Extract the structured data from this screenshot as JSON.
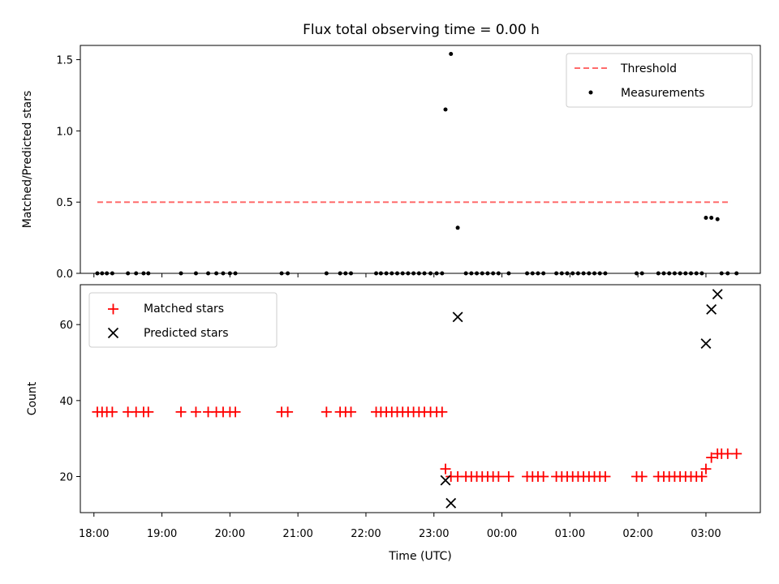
{
  "chart_data": [
    {
      "type": "scatter",
      "title": "Flux total observing time = 0.00 h",
      "xlabel": "",
      "ylabel": "Matched/Predicted stars",
      "x_unit": "hours since 18:00 UTC",
      "xlim": [
        -0.2,
        9.8
      ],
      "ylim": [
        0,
        1.6
      ],
      "yticks": [
        0.0,
        0.5,
        1.0,
        1.5
      ],
      "ytick_labels": [
        "0.0",
        "0.5",
        "1.0",
        "1.5"
      ],
      "legend_position": "top-right",
      "threshold": {
        "name": "Threshold",
        "value": 0.5,
        "x_range": [
          0.05,
          9.37
        ],
        "color": "#ff6b6b",
        "style": "dashed"
      },
      "series": [
        {
          "name": "Measurements",
          "color": "#000000",
          "marker": "dot",
          "points": [
            [
              0.05,
              0
            ],
            [
              0.12,
              0
            ],
            [
              0.19,
              0
            ],
            [
              0.27,
              0
            ],
            [
              0.5,
              0
            ],
            [
              0.62,
              0
            ],
            [
              0.73,
              0
            ],
            [
              0.8,
              0
            ],
            [
              1.28,
              0
            ],
            [
              1.5,
              0
            ],
            [
              1.68,
              0
            ],
            [
              1.8,
              0
            ],
            [
              1.9,
              0
            ],
            [
              2.0,
              0
            ],
            [
              2.08,
              0
            ],
            [
              2.76,
              0
            ],
            [
              2.85,
              0
            ],
            [
              3.42,
              0
            ],
            [
              3.62,
              0
            ],
            [
              3.7,
              0
            ],
            [
              3.78,
              0
            ],
            [
              4.15,
              0
            ],
            [
              4.22,
              0
            ],
            [
              4.3,
              0
            ],
            [
              4.38,
              0
            ],
            [
              4.46,
              0
            ],
            [
              4.54,
              0
            ],
            [
              4.62,
              0
            ],
            [
              4.7,
              0
            ],
            [
              4.78,
              0
            ],
            [
              4.86,
              0
            ],
            [
              4.95,
              0
            ],
            [
              5.04,
              0
            ],
            [
              5.12,
              0
            ],
            [
              5.17,
              1.15
            ],
            [
              5.25,
              1.54
            ],
            [
              5.35,
              0.32
            ],
            [
              5.47,
              0
            ],
            [
              5.55,
              0
            ],
            [
              5.63,
              0
            ],
            [
              5.71,
              0
            ],
            [
              5.79,
              0
            ],
            [
              5.87,
              0
            ],
            [
              5.95,
              0
            ],
            [
              6.1,
              0
            ],
            [
              6.37,
              0
            ],
            [
              6.45,
              0
            ],
            [
              6.53,
              0
            ],
            [
              6.61,
              0
            ],
            [
              6.8,
              0
            ],
            [
              6.88,
              0
            ],
            [
              6.96,
              0
            ],
            [
              7.04,
              0
            ],
            [
              7.12,
              0
            ],
            [
              7.2,
              0
            ],
            [
              7.28,
              0
            ],
            [
              7.36,
              0
            ],
            [
              7.44,
              0
            ],
            [
              7.52,
              0
            ],
            [
              7.98,
              0
            ],
            [
              8.06,
              0
            ],
            [
              8.3,
              0
            ],
            [
              8.38,
              0
            ],
            [
              8.46,
              0
            ],
            [
              8.54,
              0
            ],
            [
              8.62,
              0
            ],
            [
              8.7,
              0
            ],
            [
              8.78,
              0
            ],
            [
              8.86,
              0
            ],
            [
              8.94,
              0
            ],
            [
              9.0,
              0.39
            ],
            [
              9.08,
              0.39
            ],
            [
              9.17,
              0.38
            ],
            [
              9.23,
              0
            ],
            [
              9.32,
              0
            ],
            [
              9.45,
              0
            ]
          ]
        }
      ]
    },
    {
      "type": "scatter",
      "title": "",
      "xlabel": "Time (UTC)",
      "ylabel": "Count",
      "x_unit": "hours since 18:00 UTC",
      "xlim": [
        -0.2,
        9.8
      ],
      "ylim": [
        10.5,
        70.5
      ],
      "yticks": [
        20,
        40,
        60
      ],
      "ytick_labels": [
        "20",
        "40",
        "60"
      ],
      "xticks": [
        0,
        1,
        2,
        3,
        4,
        5,
        6,
        7,
        8,
        9
      ],
      "xtick_labels": [
        "18:00",
        "19:00",
        "20:00",
        "21:00",
        "22:00",
        "23:00",
        "00:00",
        "01:00",
        "02:00",
        "03:00"
      ],
      "legend_position": "top-left",
      "series": [
        {
          "name": "Matched stars",
          "color": "#ff0000",
          "marker": "plus",
          "points": [
            [
              0.05,
              37
            ],
            [
              0.12,
              37
            ],
            [
              0.19,
              37
            ],
            [
              0.27,
              37
            ],
            [
              0.5,
              37
            ],
            [
              0.62,
              37
            ],
            [
              0.73,
              37
            ],
            [
              0.8,
              37
            ],
            [
              1.28,
              37
            ],
            [
              1.5,
              37
            ],
            [
              1.68,
              37
            ],
            [
              1.8,
              37
            ],
            [
              1.9,
              37
            ],
            [
              2.0,
              37
            ],
            [
              2.08,
              37
            ],
            [
              2.76,
              37
            ],
            [
              2.85,
              37
            ],
            [
              3.42,
              37
            ],
            [
              3.62,
              37
            ],
            [
              3.7,
              37
            ],
            [
              3.78,
              37
            ],
            [
              4.15,
              37
            ],
            [
              4.22,
              37
            ],
            [
              4.3,
              37
            ],
            [
              4.38,
              37
            ],
            [
              4.46,
              37
            ],
            [
              4.54,
              37
            ],
            [
              4.62,
              37
            ],
            [
              4.7,
              37
            ],
            [
              4.78,
              37
            ],
            [
              4.86,
              37
            ],
            [
              4.95,
              37
            ],
            [
              5.04,
              37
            ],
            [
              5.12,
              37
            ],
            [
              5.17,
              22
            ],
            [
              5.25,
              20
            ],
            [
              5.35,
              20
            ],
            [
              5.47,
              20
            ],
            [
              5.55,
              20
            ],
            [
              5.63,
              20
            ],
            [
              5.71,
              20
            ],
            [
              5.79,
              20
            ],
            [
              5.87,
              20
            ],
            [
              5.95,
              20
            ],
            [
              6.1,
              20
            ],
            [
              6.37,
              20
            ],
            [
              6.45,
              20
            ],
            [
              6.53,
              20
            ],
            [
              6.61,
              20
            ],
            [
              6.8,
              20
            ],
            [
              6.88,
              20
            ],
            [
              6.96,
              20
            ],
            [
              7.04,
              20
            ],
            [
              7.12,
              20
            ],
            [
              7.2,
              20
            ],
            [
              7.28,
              20
            ],
            [
              7.36,
              20
            ],
            [
              7.44,
              20
            ],
            [
              7.52,
              20
            ],
            [
              7.98,
              20
            ],
            [
              8.06,
              20
            ],
            [
              8.3,
              20
            ],
            [
              8.38,
              20
            ],
            [
              8.46,
              20
            ],
            [
              8.54,
              20
            ],
            [
              8.62,
              20
            ],
            [
              8.7,
              20
            ],
            [
              8.78,
              20
            ],
            [
              8.86,
              20
            ],
            [
              8.94,
              20
            ],
            [
              9.0,
              22
            ],
            [
              9.08,
              25
            ],
            [
              9.17,
              26
            ],
            [
              9.23,
              26
            ],
            [
              9.32,
              26
            ],
            [
              9.45,
              26
            ]
          ]
        },
        {
          "name": "Predicted stars",
          "color": "#000000",
          "marker": "x",
          "points": [
            [
              5.17,
              19
            ],
            [
              5.25,
              13
            ],
            [
              5.35,
              62
            ],
            [
              9.0,
              55
            ],
            [
              9.08,
              64
            ],
            [
              9.17,
              68
            ]
          ]
        }
      ]
    }
  ]
}
